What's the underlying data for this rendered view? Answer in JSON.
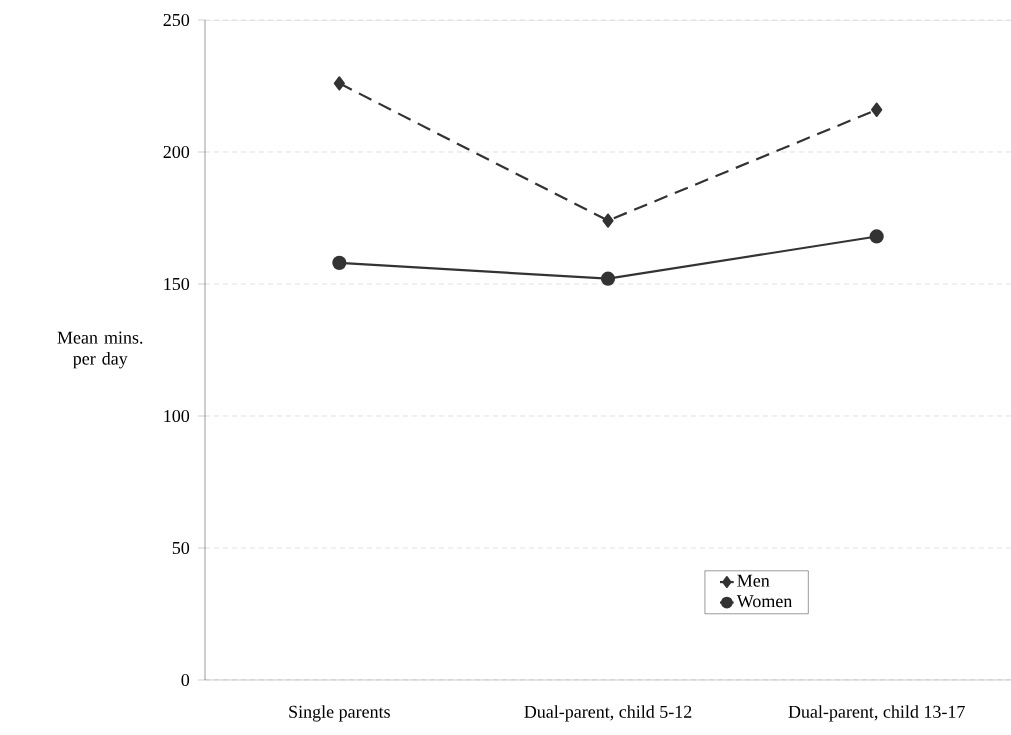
{
  "chart_data": {
    "type": "line",
    "ylabel": "Mean mins. per day",
    "categories": [
      "Single parents",
      "Dual-parent, child 5-12",
      "Dual-parent, child 13-17"
    ],
    "series": [
      {
        "name": "Men",
        "color": "#333333",
        "values": [
          226,
          174,
          216
        ],
        "marker": "diamond",
        "line_style": "dashed"
      },
      {
        "name": "Women",
        "color": "#333333",
        "values": [
          158,
          152,
          168
        ],
        "marker": "circle",
        "line_style": "solid"
      }
    ],
    "ylim": [
      0,
      250
    ],
    "yticks": [
      0,
      50,
      100,
      150,
      200,
      250
    ],
    "grid": "y",
    "legend": "bottom right"
  }
}
